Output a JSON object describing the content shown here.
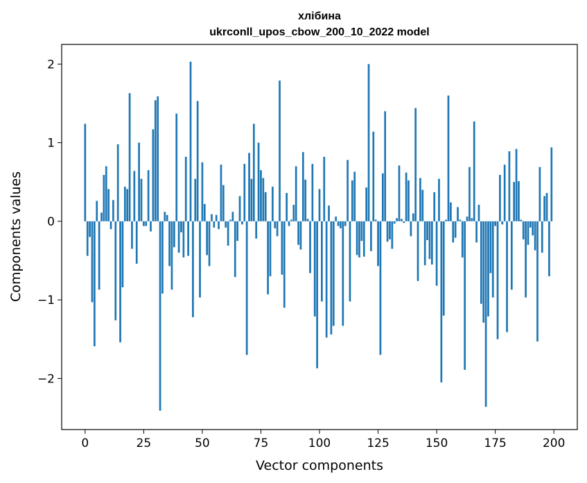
{
  "chart_data": {
    "type": "bar",
    "title": "хлібина",
    "subtitle": "ukrconll_upos_cbow_200_10_2022 model",
    "xlabel": "Vector components",
    "ylabel": "Components values",
    "xlim": [
      -10,
      210
    ],
    "ylim": [
      -2.65,
      2.25
    ],
    "xticks": [
      0,
      25,
      50,
      75,
      100,
      125,
      150,
      175,
      200
    ],
    "xtick_labels": [
      "0",
      "25",
      "50",
      "75",
      "100",
      "125",
      "150",
      "175",
      "200"
    ],
    "yticks": [
      2,
      1,
      0,
      -1,
      -2
    ],
    "ytick_labels": [
      "2",
      "1",
      "0",
      "−1",
      "−2"
    ],
    "grid": false,
    "bar_color": "#1f77b4",
    "x": [
      0,
      1,
      2,
      3,
      4,
      5,
      6,
      7,
      8,
      9,
      10,
      11,
      12,
      13,
      14,
      15,
      16,
      17,
      18,
      19,
      20,
      21,
      22,
      23,
      24,
      25,
      26,
      27,
      28,
      29,
      30,
      31,
      32,
      33,
      34,
      35,
      36,
      37,
      38,
      39,
      40,
      41,
      42,
      43,
      44,
      45,
      46,
      47,
      48,
      49,
      50,
      51,
      52,
      53,
      54,
      55,
      56,
      57,
      58,
      59,
      60,
      61,
      62,
      63,
      64,
      65,
      66,
      67,
      68,
      69,
      70,
      71,
      72,
      73,
      74,
      75,
      76,
      77,
      78,
      79,
      80,
      81,
      82,
      83,
      84,
      85,
      86,
      87,
      88,
      89,
      90,
      91,
      92,
      93,
      94,
      95,
      96,
      97,
      98,
      99,
      100,
      101,
      102,
      103,
      104,
      105,
      106,
      107,
      108,
      109,
      110,
      111,
      112,
      113,
      114,
      115,
      116,
      117,
      118,
      119,
      120,
      121,
      122,
      123,
      124,
      125,
      126,
      127,
      128,
      129,
      130,
      131,
      132,
      133,
      134,
      135,
      136,
      137,
      138,
      139,
      140,
      141,
      142,
      143,
      144,
      145,
      146,
      147,
      148,
      149,
      150,
      151,
      152,
      153,
      154,
      155,
      156,
      157,
      158,
      159,
      160,
      161,
      162,
      163,
      164,
      165,
      166,
      167,
      168,
      169,
      170,
      171,
      172,
      173,
      174,
      175,
      176,
      177,
      178,
      179,
      180,
      181,
      182,
      183,
      184,
      185,
      186,
      187,
      188,
      189,
      190,
      191,
      192,
      193,
      194,
      195,
      196,
      197,
      198,
      199
    ],
    "values": [
      1.24,
      -0.44,
      -0.2,
      -1.03,
      -1.59,
      0.26,
      -0.87,
      0.11,
      0.59,
      0.7,
      0.41,
      -0.1,
      0.27,
      -1.26,
      0.98,
      -1.54,
      -0.84,
      0.44,
      0.41,
      1.63,
      -0.35,
      0.64,
      -0.54,
      1.0,
      0.54,
      -0.06,
      -0.06,
      0.65,
      -0.13,
      1.17,
      1.54,
      1.59,
      -2.41,
      -0.92,
      0.12,
      0.08,
      -0.57,
      -0.87,
      -0.33,
      1.37,
      -0.4,
      -0.14,
      -0.46,
      0.82,
      -0.44,
      2.03,
      -1.22,
      0.54,
      1.53,
      -0.97,
      0.75,
      0.22,
      -0.43,
      -0.57,
      0.09,
      -0.08,
      0.08,
      -0.1,
      0.72,
      0.46,
      -0.08,
      -0.31,
      0.02,
      0.12,
      -0.71,
      -0.25,
      0.32,
      -0.04,
      0.73,
      -1.7,
      0.87,
      0.54,
      1.24,
      -0.22,
      1.0,
      0.65,
      0.55,
      0.37,
      -0.93,
      -0.7,
      0.44,
      -0.09,
      -0.19,
      1.79,
      -0.68,
      -1.1,
      0.36,
      -0.06,
      0.02,
      0.21,
      0.7,
      -0.3,
      -0.36,
      0.88,
      0.53,
      0.03,
      -0.66,
      0.73,
      -1.21,
      -1.87,
      0.41,
      -1.02,
      0.82,
      -1.48,
      0.2,
      -1.44,
      -1.33,
      0.06,
      -0.06,
      -0.09,
      -1.33,
      -0.06,
      0.78,
      -1.02,
      0.52,
      0.63,
      -0.43,
      -0.46,
      -0.25,
      -0.45,
      0.43,
      2.0,
      -0.38,
      1.14,
      0.02,
      -0.57,
      -1.7,
      0.61,
      1.4,
      -0.26,
      -0.23,
      -0.35,
      -0.03,
      0.04,
      0.71,
      0.03,
      -0.02,
      0.62,
      0.52,
      -0.19,
      0.1,
      1.44,
      -0.76,
      0.55,
      0.4,
      -0.56,
      -0.24,
      -0.48,
      -0.55,
      0.37,
      -0.82,
      0.54,
      -2.05,
      -1.2,
      0.02,
      1.6,
      0.24,
      -0.27,
      -0.21,
      0.18,
      0.02,
      -0.46,
      -1.89,
      0.06,
      0.69,
      0.04,
      1.27,
      -0.27,
      0.21,
      -1.05,
      -1.29,
      -2.36,
      -1.21,
      -0.66,
      -0.97,
      -0.06,
      -1.5,
      0.59,
      -0.04,
      0.72,
      -1.41,
      0.89,
      -0.87,
      0.5,
      0.92,
      0.51,
      0.02,
      -0.23,
      -0.97,
      -0.3,
      -0.08,
      -0.18,
      -0.37,
      -1.53,
      0.69,
      -0.4,
      0.32,
      0.36,
      -0.7,
      0.94
    ]
  }
}
